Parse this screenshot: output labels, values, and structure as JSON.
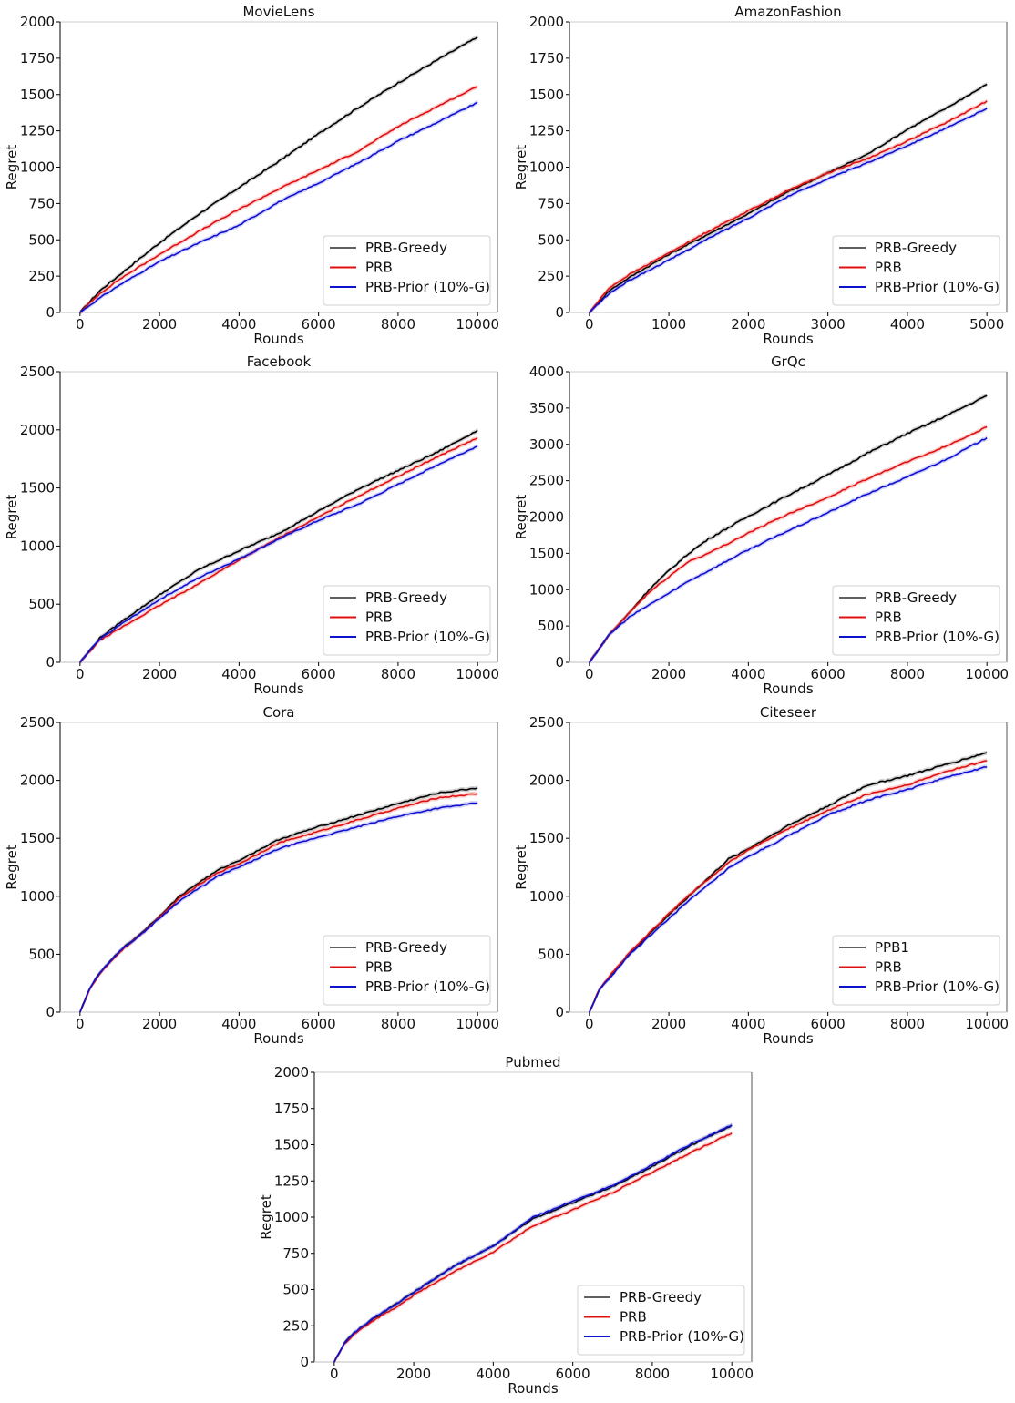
{
  "chart_data": [
    {
      "type": "line",
      "title": "MovieLens",
      "xlabel": "Rounds",
      "ylabel": "Regret",
      "xlim": [
        -500,
        10500
      ],
      "ylim": [
        0,
        2000
      ],
      "xticks": [
        0,
        2000,
        4000,
        6000,
        8000,
        10000
      ],
      "yticks": [
        0,
        250,
        500,
        750,
        1000,
        1250,
        1500,
        1750,
        2000
      ],
      "legend_position": "bottom-right",
      "grid": false,
      "x": [
        0,
        500,
        1000,
        2000,
        3000,
        4000,
        5000,
        6000,
        7000,
        8000,
        9000,
        10000
      ],
      "series": [
        {
          "name": "PRB-Greedy",
          "color": "#000000",
          "values": [
            0,
            150,
            260,
            480,
            680,
            860,
            1040,
            1230,
            1410,
            1580,
            1740,
            1895
          ]
        },
        {
          "name": "PRB",
          "color": "#e01010",
          "values": [
            0,
            130,
            230,
            400,
            560,
            710,
            850,
            980,
            1110,
            1280,
            1420,
            1555
          ]
        },
        {
          "name": "PRB-Prior (10%-G)",
          "color": "#1010d0",
          "values": [
            0,
            100,
            190,
            350,
            480,
            600,
            760,
            890,
            1030,
            1180,
            1310,
            1445
          ]
        }
      ]
    },
    {
      "type": "line",
      "title": "AmazonFashion",
      "xlabel": "Rounds",
      "ylabel": "Regret",
      "xlim": [
        -250,
        5250
      ],
      "ylim": [
        0,
        2000
      ],
      "xticks": [
        0,
        1000,
        2000,
        3000,
        4000,
        5000
      ],
      "yticks": [
        0,
        250,
        500,
        750,
        1000,
        1250,
        1500,
        1750,
        2000
      ],
      "legend_position": "bottom-right",
      "grid": false,
      "x": [
        0,
        250,
        500,
        1000,
        1500,
        2000,
        2500,
        3000,
        3500,
        4000,
        4500,
        5000
      ],
      "series": [
        {
          "name": "PRB-Greedy",
          "color": "#000000",
          "values": [
            0,
            150,
            240,
            400,
            540,
            680,
            830,
            960,
            1090,
            1260,
            1410,
            1570
          ]
        },
        {
          "name": "PRB",
          "color": "#e01010",
          "values": [
            0,
            170,
            260,
            410,
            560,
            700,
            840,
            960,
            1060,
            1180,
            1310,
            1455
          ]
        },
        {
          "name": "PRB-Prior (10%-G)",
          "color": "#1010d0",
          "values": [
            0,
            130,
            220,
            360,
            510,
            650,
            800,
            920,
            1030,
            1150,
            1270,
            1405
          ]
        }
      ]
    },
    {
      "type": "line",
      "title": "Facebook",
      "xlabel": "Rounds",
      "ylabel": "Regret",
      "xlim": [
        -500,
        10500
      ],
      "ylim": [
        0,
        2500
      ],
      "xticks": [
        0,
        2000,
        4000,
        6000,
        8000,
        10000
      ],
      "yticks": [
        0,
        500,
        1000,
        1500,
        2000,
        2500
      ],
      "legend_position": "bottom-right",
      "grid": false,
      "x": [
        0,
        500,
        1000,
        2000,
        3000,
        4000,
        5000,
        6000,
        7000,
        8000,
        9000,
        10000
      ],
      "series": [
        {
          "name": "PRB-Greedy",
          "color": "#000000",
          "values": [
            0,
            210,
            340,
            580,
            800,
            960,
            1110,
            1300,
            1490,
            1650,
            1810,
            1995
          ]
        },
        {
          "name": "PRB",
          "color": "#e01010",
          "values": [
            0,
            190,
            290,
            490,
            680,
            880,
            1070,
            1250,
            1430,
            1600,
            1770,
            1930
          ]
        },
        {
          "name": "PRB-Prior (10%-G)",
          "color": "#1010d0",
          "values": [
            0,
            200,
            320,
            540,
            730,
            890,
            1060,
            1220,
            1360,
            1530,
            1700,
            1860
          ]
        }
      ]
    },
    {
      "type": "line",
      "title": "GrQc",
      "xlabel": "Rounds",
      "ylabel": "Regret",
      "xlim": [
        -500,
        10500
      ],
      "ylim": [
        0,
        4000
      ],
      "xticks": [
        0,
        2000,
        4000,
        6000,
        8000,
        10000
      ],
      "yticks": [
        0,
        500,
        1000,
        1500,
        2000,
        2500,
        3000,
        3500,
        4000
      ],
      "legend_position": "bottom-right",
      "grid": false,
      "x": [
        0,
        500,
        1000,
        1500,
        2000,
        2500,
        3000,
        4000,
        5000,
        6000,
        7000,
        8000,
        9000,
        10000
      ],
      "series": [
        {
          "name": "PRB-Greedy",
          "color": "#000000",
          "values": [
            0,
            380,
            680,
            1000,
            1260,
            1500,
            1700,
            2010,
            2300,
            2580,
            2880,
            3150,
            3400,
            3670
          ]
        },
        {
          "name": "PRB",
          "color": "#e01010",
          "values": [
            0,
            380,
            680,
            960,
            1180,
            1390,
            1500,
            1780,
            2040,
            2270,
            2530,
            2760,
            2980,
            3240
          ]
        },
        {
          "name": "PRB-Prior (10%-G)",
          "color": "#1010d0",
          "values": [
            0,
            380,
            620,
            790,
            950,
            1120,
            1260,
            1550,
            1810,
            2060,
            2320,
            2550,
            2800,
            3090
          ]
        }
      ]
    },
    {
      "type": "line",
      "title": "Cora",
      "xlabel": "Rounds",
      "ylabel": "Regret",
      "xlim": [
        -500,
        10500
      ],
      "ylim": [
        0,
        2500
      ],
      "xticks": [
        0,
        2000,
        4000,
        6000,
        8000,
        10000
      ],
      "yticks": [
        0,
        500,
        1000,
        1500,
        2000,
        2500
      ],
      "legend_position": "bottom-right",
      "grid": false,
      "x": [
        0,
        250,
        500,
        1000,
        1500,
        2000,
        2500,
        3000,
        3500,
        4000,
        5000,
        6000,
        7000,
        8000,
        9000,
        10000
      ],
      "series": [
        {
          "name": "PRB-Greedy",
          "color": "#000000",
          "values": [
            0,
            210,
            340,
            530,
            670,
            830,
            1000,
            1120,
            1230,
            1310,
            1490,
            1600,
            1700,
            1800,
            1890,
            1935
          ]
        },
        {
          "name": "PRB",
          "color": "#e01010",
          "values": [
            0,
            200,
            330,
            520,
            660,
            820,
            980,
            1100,
            1210,
            1280,
            1460,
            1560,
            1660,
            1760,
            1850,
            1885
          ]
        },
        {
          "name": "PRB-Prior (10%-G)",
          "color": "#1010d0",
          "values": [
            0,
            210,
            340,
            530,
            660,
            810,
            960,
            1070,
            1180,
            1250,
            1410,
            1510,
            1600,
            1690,
            1760,
            1805
          ]
        }
      ]
    },
    {
      "type": "line",
      "title": "Citeseer",
      "xlabel": "Rounds",
      "ylabel": "Regret",
      "xlim": [
        -500,
        10500
      ],
      "ylim": [
        0,
        2500
      ],
      "xticks": [
        0,
        2000,
        4000,
        6000,
        8000,
        10000
      ],
      "yticks": [
        0,
        500,
        1000,
        1500,
        2000,
        2500
      ],
      "legend_position": "bottom-right",
      "grid": false,
      "x": [
        0,
        250,
        500,
        1000,
        1500,
        2000,
        2500,
        3000,
        3500,
        4000,
        5000,
        6000,
        7000,
        8000,
        9000,
        10000
      ],
      "series": [
        {
          "name": "PPB1",
          "color": "#000000",
          "values": [
            0,
            190,
            300,
            500,
            670,
            840,
            1000,
            1160,
            1320,
            1410,
            1610,
            1780,
            1960,
            2040,
            2140,
            2240
          ]
        },
        {
          "name": "PRB",
          "color": "#e01010",
          "values": [
            0,
            200,
            310,
            510,
            680,
            850,
            1010,
            1150,
            1290,
            1400,
            1580,
            1740,
            1880,
            1960,
            2080,
            2170
          ]
        },
        {
          "name": "PRB-Prior (10%-G)",
          "color": "#1010d0",
          "values": [
            0,
            190,
            290,
            490,
            650,
            810,
            960,
            1100,
            1240,
            1340,
            1520,
            1700,
            1830,
            1920,
            2030,
            2115
          ]
        }
      ]
    },
    {
      "type": "line",
      "title": "Pubmed",
      "xlabel": "Rounds",
      "ylabel": "Regret",
      "xlim": [
        -500,
        10500
      ],
      "ylim": [
        0,
        2000
      ],
      "xticks": [
        0,
        2000,
        4000,
        6000,
        8000,
        10000
      ],
      "yticks": [
        0,
        250,
        500,
        750,
        1000,
        1250,
        1500,
        1750,
        2000
      ],
      "legend_position": "bottom-right",
      "grid": false,
      "x": [
        0,
        250,
        500,
        1000,
        1500,
        2000,
        3000,
        4000,
        5000,
        6000,
        7000,
        8000,
        9000,
        10000
      ],
      "series": [
        {
          "name": "PRB-Greedy",
          "color": "#000000",
          "values": [
            0,
            130,
            200,
            300,
            390,
            480,
            660,
            800,
            990,
            1100,
            1210,
            1350,
            1500,
            1635
          ]
        },
        {
          "name": "PRB",
          "color": "#e01010",
          "values": [
            0,
            120,
            190,
            290,
            370,
            460,
            620,
            760,
            940,
            1050,
            1170,
            1310,
            1450,
            1580
          ]
        },
        {
          "name": "PRB-Prior (10%-G)",
          "color": "#1010d0",
          "values": [
            0,
            130,
            200,
            310,
            390,
            480,
            660,
            800,
            1000,
            1110,
            1220,
            1360,
            1510,
            1635
          ]
        }
      ]
    }
  ]
}
